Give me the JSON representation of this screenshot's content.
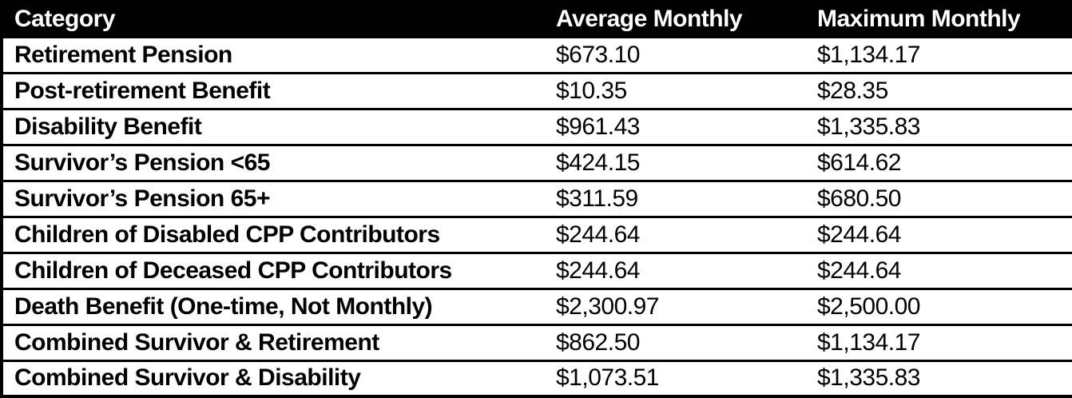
{
  "colors": {
    "header_bg": "#000000",
    "header_text": "#ffffff",
    "body_bg": "#ffffff",
    "body_text": "#000000",
    "border": "#000000"
  },
  "table": {
    "columns": [
      {
        "label": "Category"
      },
      {
        "label": "Average Monthly"
      },
      {
        "label": "Maximum Monthly"
      }
    ],
    "rows": [
      {
        "category": "Retirement Pension",
        "average": "$673.10",
        "maximum": "$1,134.17"
      },
      {
        "category": "Post-retirement Benefit",
        "average": "$10.35",
        "maximum": "$28.35"
      },
      {
        "category": "Disability Benefit",
        "average": "$961.43",
        "maximum": "$1,335.83"
      },
      {
        "category": "Survivor’s Pension <65",
        "average": "$424.15",
        "maximum": "$614.62"
      },
      {
        "category": "Survivor’s Pension 65+",
        "average": "$311.59",
        "maximum": "$680.50"
      },
      {
        "category": "Children of Disabled CPP Contributors",
        "average": "$244.64",
        "maximum": "$244.64"
      },
      {
        "category": "Children of Deceased CPP Contributors",
        "average": "$244.64",
        "maximum": "$244.64"
      },
      {
        "category": "Death Benefit (One-time, Not Monthly)",
        "average": "$2,300.97",
        "maximum": "$2,500.00"
      },
      {
        "category": "Combined Survivor & Retirement",
        "average": "$862.50",
        "maximum": "$1,134.17"
      },
      {
        "category": "Combined Survivor & Disability",
        "average": "$1,073.51",
        "maximum": "$1,335.83"
      }
    ]
  },
  "chart_data": {
    "type": "table",
    "title": "",
    "columns": [
      "Category",
      "Average Monthly",
      "Maximum Monthly"
    ],
    "rows": [
      [
        "Retirement Pension",
        "$673.10",
        "$1,134.17"
      ],
      [
        "Post-retirement Benefit",
        "$10.35",
        "$28.35"
      ],
      [
        "Disability Benefit",
        "$961.43",
        "$1,335.83"
      ],
      [
        "Survivor’s Pension <65",
        "$424.15",
        "$614.62"
      ],
      [
        "Survivor’s Pension 65+",
        "$311.59",
        "$680.50"
      ],
      [
        "Children of Disabled CPP Contributors",
        "$244.64",
        "$244.64"
      ],
      [
        "Children of Deceased CPP Contributors",
        "$244.64",
        "$244.64"
      ],
      [
        "Death Benefit (One-time, Not Monthly)",
        "$2,300.97",
        "$2,500.00"
      ],
      [
        "Combined Survivor & Retirement",
        "$862.50",
        "$1,134.17"
      ],
      [
        "Combined Survivor & Disability",
        "$1,073.51",
        "$1,335.83"
      ]
    ]
  }
}
